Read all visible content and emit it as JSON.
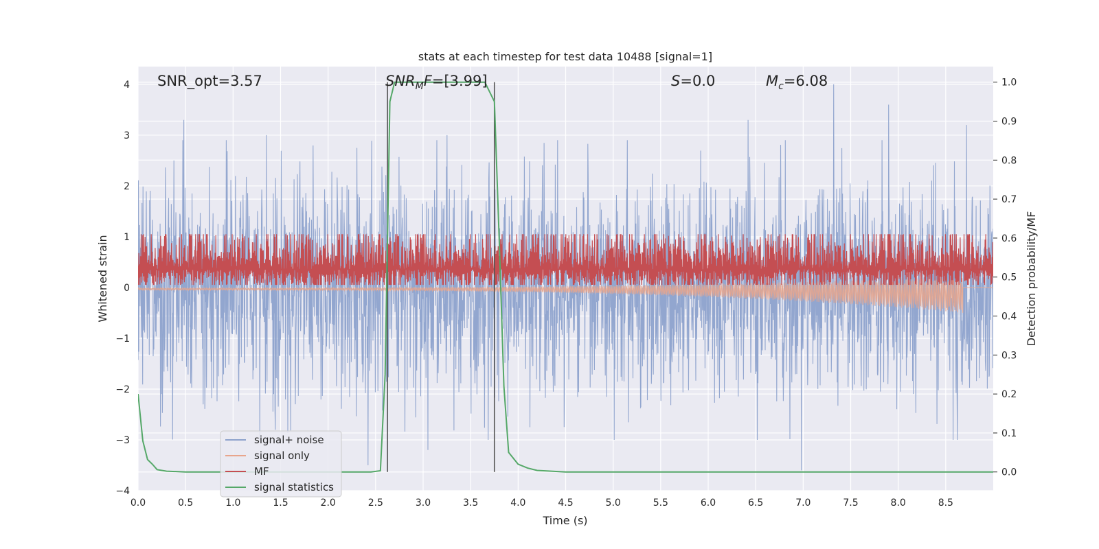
{
  "chart_data": {
    "type": "line",
    "title": "stats at each timestep for test data 10488 [signal=1]",
    "xlabel": "Time (s)",
    "ylabel_left": "Whitened strain",
    "ylabel_right": "Detection probability/MF",
    "xlim": [
      0,
      9.0
    ],
    "ylim_left": [
      -4,
      4.35
    ],
    "ylim_right": [
      -0.048,
      1.04
    ],
    "x_ticks": [
      "0.0",
      "0.5",
      "1.0",
      "1.5",
      "2.0",
      "2.5",
      "3.0",
      "3.5",
      "4.0",
      "4.5",
      "5.0",
      "5.5",
      "6.0",
      "6.5",
      "7.0",
      "7.5",
      "8.0",
      "8.5"
    ],
    "y_ticks_left": [
      "−4",
      "−3",
      "−2",
      "−1",
      "0",
      "1",
      "2",
      "3",
      "4"
    ],
    "y_ticks_right": [
      "0.0",
      "0.1",
      "0.2",
      "0.3",
      "0.4",
      "0.5",
      "0.6",
      "0.7",
      "0.8",
      "0.9",
      "1.0"
    ],
    "grid": true,
    "legend_position": "lower-left",
    "annotations": {
      "snr_opt": "SNR_opt=3.57",
      "snr_mf_name": "SNR",
      "snr_mf_sub": "M",
      "snr_mf_rest": "F",
      "snr_mf_value": "=[3.99]",
      "s_name": "S",
      "s_value": "=0.0",
      "mc_name": "M",
      "mc_sub": "c",
      "mc_value": "=6.08"
    },
    "vertical_markers_x": [
      2.625,
      3.75
    ],
    "series": [
      {
        "name": "signal+ noise",
        "color": "#8da2cc",
        "axis": "left",
        "kind": "noise",
        "approx_sigma": 1.0,
        "notable_peaks": [
          [
            0.48,
            3.3
          ],
          [
            1.35,
            3.0
          ],
          [
            3.25,
            3.0
          ],
          [
            6.42,
            3.3
          ],
          [
            7.32,
            4.0
          ],
          [
            7.9,
            3.6
          ],
          [
            8.72,
            3.2
          ],
          [
            3.05,
            -3.2
          ],
          [
            6.98,
            -3.6
          ],
          [
            2.42,
            -3.5
          ]
        ]
      },
      {
        "name": "signal only",
        "color": "#e8a58c",
        "axis": "left",
        "kind": "chirp",
        "x_end": 8.68,
        "amplitude_end": 0.35,
        "y_end": -0.35
      },
      {
        "name": "MF",
        "color": "#c44e52",
        "axis": "right",
        "kind": "mf",
        "baseline": 0.5,
        "spread": 0.06,
        "max": 0.61
      },
      {
        "name": "signal statistics",
        "color": "#55a868",
        "axis": "right",
        "kind": "curve",
        "x": [
          0.0,
          0.05,
          0.1,
          0.15,
          0.2,
          0.3,
          0.5,
          1.0,
          1.5,
          2.0,
          2.45,
          2.55,
          2.6,
          2.65,
          2.7,
          3.0,
          3.5,
          3.65,
          3.75,
          3.8,
          3.85,
          3.9,
          4.0,
          4.1,
          4.2,
          4.5,
          5.0,
          6.0,
          7.0,
          8.0,
          9.0
        ],
        "y": [
          0.2,
          0.08,
          0.032,
          0.02,
          0.006,
          0.002,
          0.0,
          0.0,
          0.0,
          0.0,
          0.0,
          0.003,
          0.25,
          0.95,
          1.0,
          1.0,
          1.0,
          1.0,
          0.95,
          0.6,
          0.22,
          0.05,
          0.02,
          0.01,
          0.004,
          0.0,
          0.0,
          0.0,
          0.0,
          0.0,
          0.0
        ]
      }
    ]
  }
}
